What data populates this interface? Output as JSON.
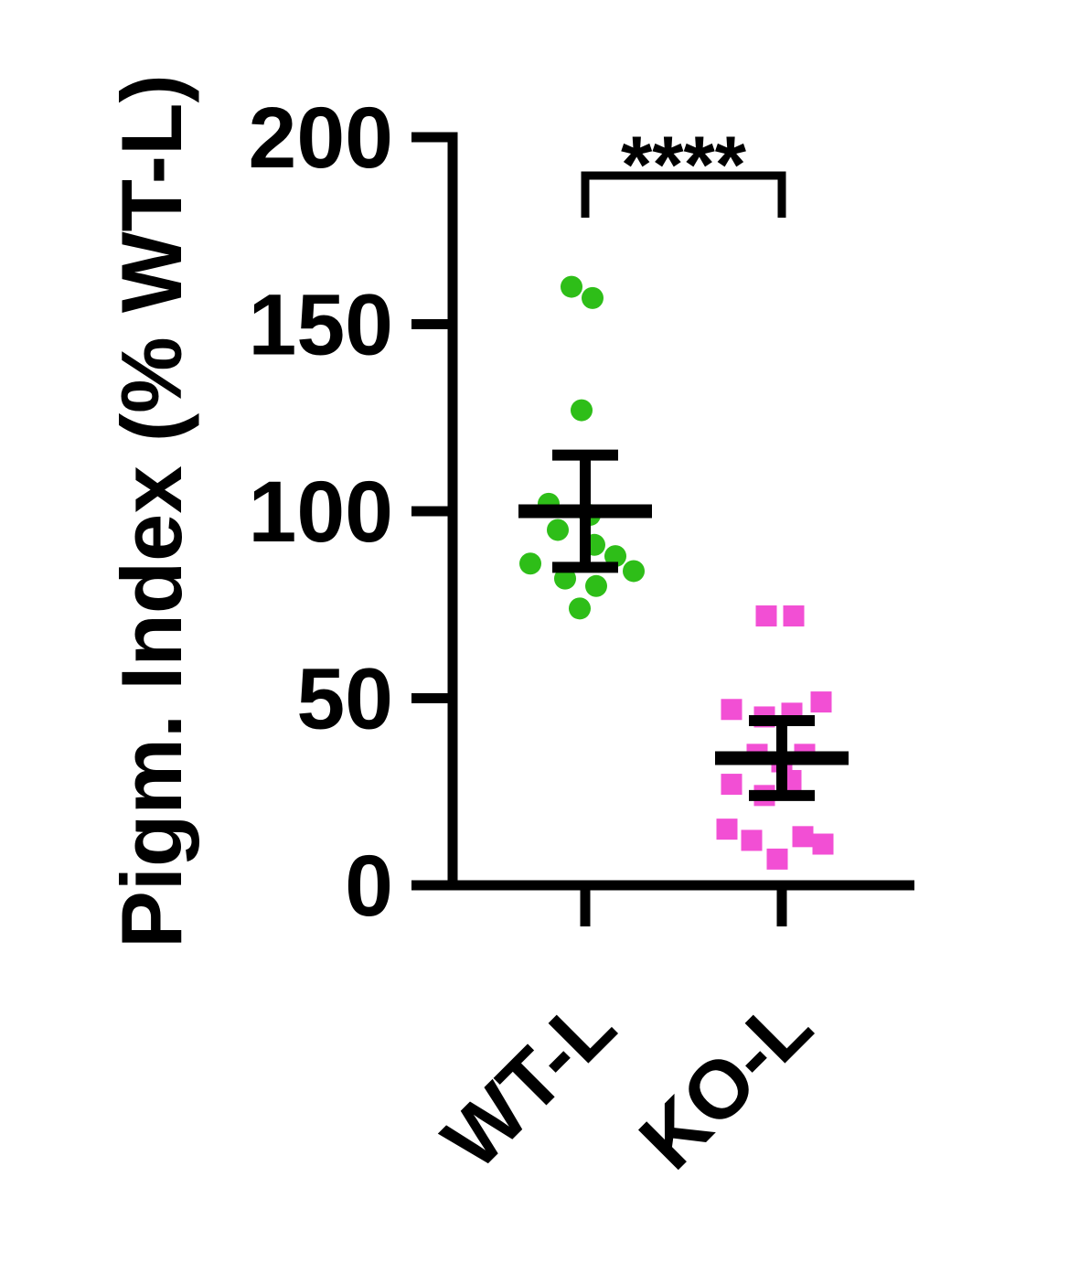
{
  "chart_data": {
    "type": "scatter",
    "title": "",
    "ylabel": "Pigm. Index (% WT-L)",
    "xlabel": "",
    "ylim": [
      0,
      200
    ],
    "yticks": [
      0,
      50,
      100,
      150,
      200
    ],
    "categories": [
      "WT-L",
      "KO-L"
    ],
    "grid": false,
    "legend_position": "none",
    "significance": {
      "label": "****",
      "between": [
        "WT-L",
        "KO-L"
      ]
    },
    "series": [
      {
        "name": "WT-L",
        "marker": "circle",
        "color": "#2ebe18",
        "mean": 100,
        "error_upper": 115,
        "error_lower": 85,
        "values": [
          160,
          157,
          127,
          102,
          99,
          95,
          91,
          88,
          86,
          84,
          82,
          80,
          74
        ],
        "jitter": [
          -15,
          8,
          -4,
          -40,
          5,
          -30,
          10,
          33,
          -60,
          53,
          -22,
          12,
          -6
        ]
      },
      {
        "name": "KO-L",
        "marker": "square",
        "color": "#f24fd4",
        "mean": 34,
        "error_upper": 44,
        "error_lower": 24,
        "values": [
          72,
          72,
          47,
          45,
          46,
          49,
          35,
          33,
          35,
          27,
          24,
          28,
          15,
          12,
          7,
          13,
          11
        ],
        "jitter": [
          -17,
          13,
          -55,
          -19,
          11,
          43,
          -27,
          0,
          25,
          -55,
          -19,
          10,
          -60,
          -33,
          -5,
          23,
          45
        ]
      }
    ]
  },
  "colors": {
    "axis": "#000000",
    "background": "#ffffff",
    "error_bar": "#000000"
  }
}
